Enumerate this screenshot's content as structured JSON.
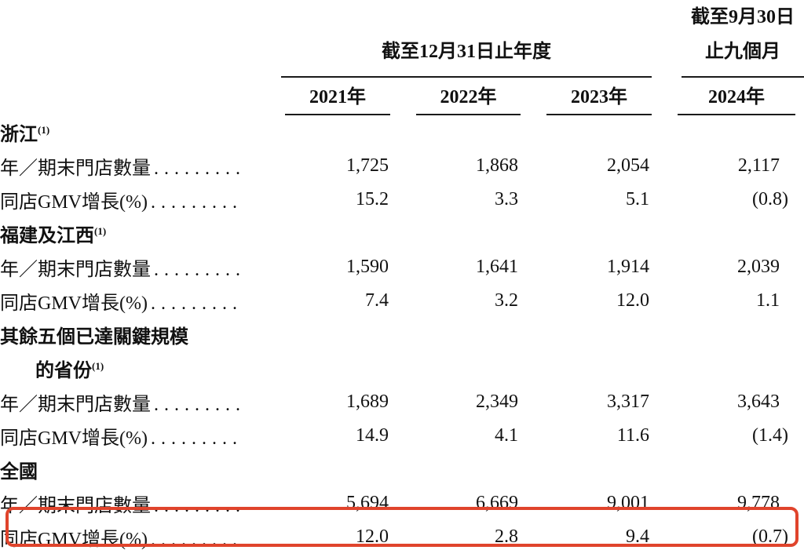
{
  "document": {
    "background_color": "#ffffff",
    "text_color": "#111111",
    "highlight_color": "#e0442c"
  },
  "table": {
    "header": {
      "annual_group": "截至12月31日止年度",
      "nine_month_group_line1": "截至9月30日",
      "nine_month_group_line2": "止九個月",
      "columns": [
        "2021年",
        "2022年",
        "2023年",
        "2024年"
      ]
    },
    "labels": {
      "stores": "年／期末門店數量",
      "gmv": "同店GMV增長(%)",
      "leader_dots": "........."
    },
    "sections": [
      {
        "name": "浙江",
        "footnote": "(1)",
        "stores": [
          "1,725",
          "1,868",
          "2,054",
          "2,117"
        ],
        "gmv": [
          "15.2",
          "3.3",
          "5.1",
          "(0.8)"
        ]
      },
      {
        "name": "福建及江西",
        "footnote": "(1)",
        "stores": [
          "1,590",
          "1,641",
          "1,914",
          "2,039"
        ],
        "gmv": [
          "7.4",
          "3.2",
          "12.0",
          "1.1"
        ]
      },
      {
        "name": "其餘五個已達關鍵規模",
        "name_line2": "的省份",
        "footnote": "(1)",
        "stores": [
          "1,689",
          "2,349",
          "3,317",
          "3,643"
        ],
        "gmv": [
          "14.9",
          "4.1",
          "11.6",
          "(1.4)"
        ]
      },
      {
        "name": "全國",
        "stores": [
          "5,694",
          "6,669",
          "9,001",
          "9,778"
        ],
        "gmv": [
          "12.0",
          "2.8",
          "9.4",
          "(0.7)"
        ],
        "gmv_row_highlighted": true
      }
    ]
  }
}
